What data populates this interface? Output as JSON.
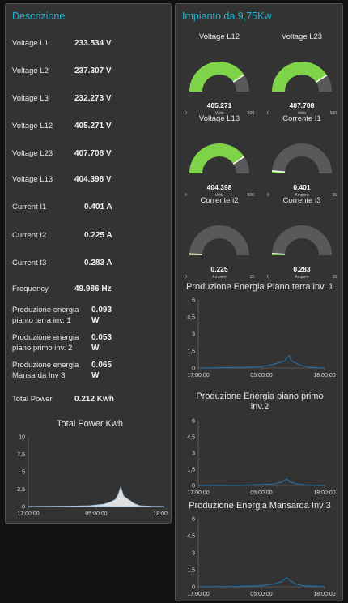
{
  "left_panel": {
    "title": "Descrizione",
    "rows": [
      {
        "label": "Voltage L1",
        "value": "233.534 V"
      },
      {
        "label": "Voltage L2",
        "value": "237.307 V"
      },
      {
        "label": "Voltage L3",
        "value": "232.273 V"
      },
      {
        "label": "Voltage L12",
        "value": "405.271 V"
      },
      {
        "label": "Voltage L23",
        "value": "407.708 V"
      },
      {
        "label": "Voltage L13",
        "value": "404.398 V"
      },
      {
        "label": "Current I1",
        "value": "0.401 A"
      },
      {
        "label": "Current I2",
        "value": "0.225 A"
      },
      {
        "label": "Current I3",
        "value": "0.283 A"
      },
      {
        "label": "Frequency",
        "value": "49.986 Hz"
      },
      {
        "label": "Produzione energia pianto terra inv. 1",
        "value": "0.093 W"
      },
      {
        "label": "Produzione energia piano primo inv. 2",
        "value": "0.053 W"
      },
      {
        "label": "Produzione energia Mansarda Inv 3",
        "value": "0.065 W"
      },
      {
        "label": "Total Power",
        "value": "0.212 Kwh"
      }
    ]
  },
  "right_panel": {
    "title": "Impianto da 9,75Kw",
    "gauges": [
      {
        "title": "Voltage L12",
        "value": "405.271",
        "unit": "Volts",
        "min": "0",
        "max": "500",
        "fraction": 0.81
      },
      {
        "title": "Voltage L23",
        "value": "407.708",
        "unit": "Volts",
        "min": "0",
        "max": "500",
        "fraction": 0.815
      },
      {
        "title": "Voltage L13",
        "value": "404.398",
        "unit": "Volts",
        "min": "0",
        "max": "500",
        "fraction": 0.81
      },
      {
        "title": "Corrente I1",
        "value": "0.401",
        "unit": "Ampere",
        "min": "0",
        "max": "15",
        "fraction": 0.027
      },
      {
        "title": "Corrente i2",
        "value": "0.225",
        "unit": "Ampere",
        "min": "0",
        "max": "15",
        "fraction": 0.015
      },
      {
        "title": "Corrente i3",
        "value": "0.283",
        "unit": "Ampere",
        "min": "0",
        "max": "15",
        "fraction": 0.019
      }
    ]
  },
  "colors": {
    "accent": "#1db6cf",
    "gauge_fill": "#7ed348",
    "gauge_track": "#595959",
    "line": "#1f77b4",
    "panel_bg": "#333333",
    "page_bg": "#111111"
  },
  "chart_data": [
    {
      "type": "area",
      "title": "Total Power Kwh",
      "x_ticks": [
        "17:00:00",
        "05:00:00",
        "18:00:00"
      ],
      "y_ticks": [
        "0",
        "2,5",
        "5",
        "7,5",
        "10"
      ],
      "ylim": [
        0,
        10
      ],
      "points": [
        [
          0,
          0
        ],
        [
          0.3,
          0.05
        ],
        [
          0.45,
          0.1
        ],
        [
          0.55,
          0.3
        ],
        [
          0.6,
          0.6
        ],
        [
          0.64,
          1.0
        ],
        [
          0.66,
          1.6
        ],
        [
          0.68,
          2.8
        ],
        [
          0.7,
          1.5
        ],
        [
          0.72,
          1.2
        ],
        [
          0.75,
          0.8
        ],
        [
          0.78,
          0.4
        ],
        [
          0.82,
          0.1
        ],
        [
          0.9,
          0.02
        ],
        [
          1,
          0
        ]
      ]
    },
    {
      "type": "line",
      "title": "Produzione Energia Piano terra inv. 1",
      "x_ticks": [
        "17:00:00",
        "05:00:00",
        "18:00:00"
      ],
      "y_ticks": [
        "0",
        "1,5",
        "3",
        "4,5",
        "6"
      ],
      "ylim": [
        0,
        6
      ],
      "points": [
        [
          0,
          0
        ],
        [
          0.3,
          0.05
        ],
        [
          0.45,
          0.1
        ],
        [
          0.55,
          0.2
        ],
        [
          0.62,
          0.4
        ],
        [
          0.68,
          0.6
        ],
        [
          0.72,
          1.1
        ],
        [
          0.74,
          0.6
        ],
        [
          0.78,
          0.4
        ],
        [
          0.82,
          0.2
        ],
        [
          0.88,
          0.08
        ],
        [
          0.95,
          0.02
        ],
        [
          1,
          0
        ]
      ]
    },
    {
      "type": "line",
      "title": "Produzione Energia piano primo inv.2",
      "x_ticks": [
        "17:00:00",
        "05:00:00",
        "18:00:00"
      ],
      "y_ticks": [
        "0",
        "1,5",
        "3",
        "4,5",
        "6"
      ],
      "ylim": [
        0,
        6
      ],
      "points": [
        [
          0,
          0
        ],
        [
          0.3,
          0.02
        ],
        [
          0.5,
          0.08
        ],
        [
          0.6,
          0.15
        ],
        [
          0.66,
          0.3
        ],
        [
          0.7,
          0.6
        ],
        [
          0.73,
          0.3
        ],
        [
          0.78,
          0.15
        ],
        [
          0.85,
          0.05
        ],
        [
          1,
          0
        ]
      ]
    },
    {
      "type": "line",
      "title": "Produzione Energia Mansarda Inv 3",
      "x_ticks": [
        "17:00:00",
        "05:00:00",
        "18:00:00"
      ],
      "y_ticks": [
        "0",
        "1,5",
        "3",
        "4,5",
        "6"
      ],
      "ylim": [
        0,
        6
      ],
      "points": [
        [
          0,
          0
        ],
        [
          0.3,
          0.03
        ],
        [
          0.5,
          0.1
        ],
        [
          0.6,
          0.25
        ],
        [
          0.66,
          0.45
        ],
        [
          0.7,
          0.8
        ],
        [
          0.73,
          0.5
        ],
        [
          0.78,
          0.2
        ],
        [
          0.85,
          0.08
        ],
        [
          1,
          0
        ]
      ]
    }
  ]
}
